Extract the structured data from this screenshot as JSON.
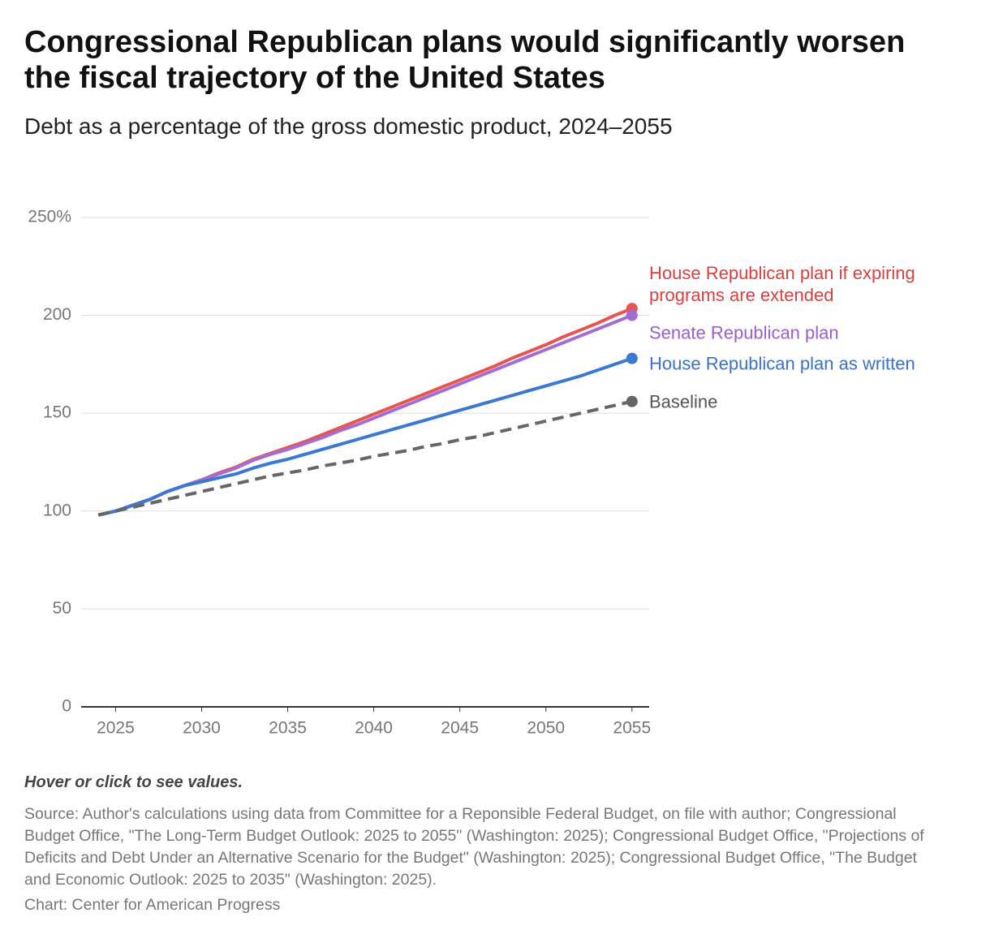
{
  "chart_data": {
    "type": "line",
    "title": "Congressional Republican plans would significantly worsen the fiscal trajectory of the United States",
    "subtitle": "Debt as a percentage of the gross domestic product, 2024–2055",
    "x": [
      2024,
      2025,
      2026,
      2027,
      2028,
      2029,
      2030,
      2031,
      2032,
      2033,
      2034,
      2035,
      2036,
      2037,
      2038,
      2039,
      2040,
      2041,
      2042,
      2043,
      2044,
      2045,
      2046,
      2047,
      2048,
      2049,
      2050,
      2051,
      2052,
      2053,
      2054,
      2055
    ],
    "xlim": [
      2023,
      2056
    ],
    "xticks": [
      2025,
      2030,
      2035,
      2040,
      2045,
      2050,
      2055
    ],
    "ylim": [
      0,
      250
    ],
    "yticks": [
      0,
      50,
      100,
      150,
      200,
      {
        "value": 250,
        "label": "250%"
      }
    ],
    "grid": true,
    "series": [
      {
        "name": "House Republican plan if expiring programs are extended",
        "color": "#e8554e",
        "values": [
          98,
          100,
          103,
          106,
          110,
          113,
          116,
          119.5,
          122.5,
          126.5,
          129.5,
          132.5,
          135.5,
          139,
          142.5,
          146,
          149.5,
          153,
          156.5,
          160,
          163.5,
          167,
          170.5,
          174,
          178,
          181.5,
          185,
          189,
          192.5,
          196,
          200,
          203.5
        ]
      },
      {
        "name": "Senate Republican plan",
        "color": "#a36bd4",
        "values": [
          98,
          100,
          103,
          106,
          110,
          113,
          116,
          119,
          122,
          126,
          129,
          131.5,
          134.5,
          137.5,
          141,
          144,
          147.5,
          151,
          154.5,
          158,
          161.5,
          165,
          168.5,
          172,
          175.5,
          179,
          182.5,
          186,
          189.5,
          193,
          196.5,
          200
        ]
      },
      {
        "name": "House Republican plan as written",
        "color": "#3b78d0",
        "values": [
          98,
          100,
          103,
          106,
          110,
          113,
          115,
          117,
          119,
          122,
          124.5,
          126.5,
          129,
          131.5,
          134,
          136.5,
          139,
          141.5,
          144,
          146.5,
          149,
          151.5,
          154,
          156.5,
          159,
          161.5,
          164,
          166.5,
          169,
          172,
          175,
          178
        ]
      },
      {
        "name": "Baseline",
        "color": "#666666",
        "dashed": true,
        "values": [
          98,
          100,
          102,
          104,
          106,
          108,
          110,
          112,
          114,
          116,
          118,
          119.5,
          121,
          123,
          124.5,
          126,
          128,
          129.5,
          131,
          133,
          134.5,
          136.5,
          138,
          140,
          142,
          144,
          146,
          148,
          150,
          152,
          154,
          156
        ]
      }
    ],
    "note": "Hover or click to see values.",
    "source": "Source: Author's calculations using data from Committee for a Reponsible Federal Budget, on file with author; Congressional Budget Office, \"The Long-Term Budget Outlook: 2025 to 2055\" (Washington: 2025); Congressional Budget Office, \"Projections of Deficits and Debt Under an Alternative Scenario for the Budget\" (Washington: 2025); Congressional Budget Office, \"The Budget and Economic Outlook: 2025 to 2035\" (Washington: 2025).",
    "credit": "Chart: Center for American Progress"
  }
}
